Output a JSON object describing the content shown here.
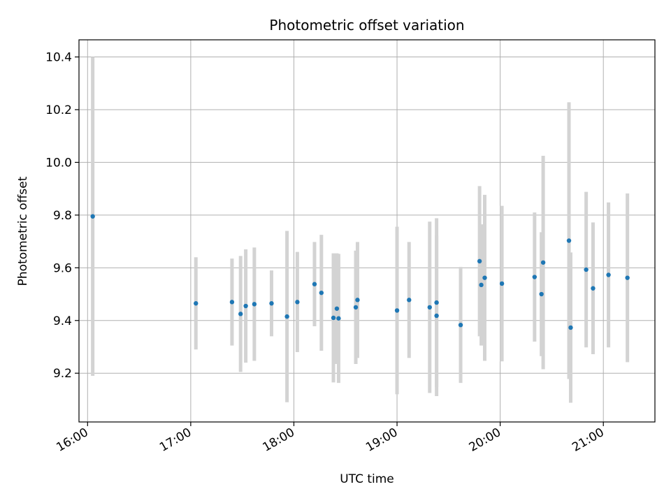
{
  "chart_data": {
    "type": "scatter",
    "title": "Photometric offset variation",
    "xlabel": "UTC time",
    "ylabel": "Photometric offset",
    "x_ticks": [
      "16:00",
      "17:00",
      "18:00",
      "19:00",
      "20:00",
      "21:00"
    ],
    "x_range": [
      "15:55",
      "21:30"
    ],
    "ylim": [
      9.015,
      10.465
    ],
    "y_ticks": [
      9.2,
      9.4,
      9.6,
      9.8,
      10.0,
      10.2,
      10.4
    ],
    "y_tick_labels": [
      "9.2",
      "9.4",
      "9.6",
      "9.8",
      "10.0",
      "10.2",
      "10.4"
    ],
    "grid": true,
    "x_tick_rotation_deg": 30,
    "point_color": "#1f77b4",
    "errorbar_color": "#d3d3d3",
    "points": [
      {
        "t": "16:03",
        "y": 9.795,
        "err": 0.605
      },
      {
        "t": "17:03",
        "y": 9.465,
        "err": 0.175
      },
      {
        "t": "17:24",
        "y": 9.47,
        "err": 0.165
      },
      {
        "t": "17:29",
        "y": 9.425,
        "err": 0.22
      },
      {
        "t": "17:32",
        "y": 9.455,
        "err": 0.215
      },
      {
        "t": "17:37",
        "y": 9.462,
        "err": 0.215
      },
      {
        "t": "17:47",
        "y": 9.465,
        "err": 0.125
      },
      {
        "t": "17:56",
        "y": 9.415,
        "err": 0.325
      },
      {
        "t": "18:02",
        "y": 9.47,
        "err": 0.19
      },
      {
        "t": "18:12",
        "y": 9.538,
        "err": 0.16
      },
      {
        "t": "18:16",
        "y": 9.505,
        "err": 0.22
      },
      {
        "t": "18:23",
        "y": 9.41,
        "err": 0.245
      },
      {
        "t": "18:25",
        "y": 9.445,
        "err": 0.21
      },
      {
        "t": "18:26",
        "y": 9.408,
        "err": 0.245
      },
      {
        "t": "18:36",
        "y": 9.45,
        "err": 0.215
      },
      {
        "t": "18:37",
        "y": 9.478,
        "err": 0.22
      },
      {
        "t": "19:00",
        "y": 9.438,
        "err": 0.318
      },
      {
        "t": "19:07",
        "y": 9.478,
        "err": 0.22
      },
      {
        "t": "19:19",
        "y": 9.45,
        "err": 0.325
      },
      {
        "t": "19:23",
        "y": 9.468,
        "err": 0.32
      },
      {
        "t": "19:23",
        "y": 9.418,
        "err": 0.305
      },
      {
        "t": "19:37",
        "y": 9.383,
        "err": 0.22
      },
      {
        "t": "19:48",
        "y": 9.625,
        "err": 0.285
      },
      {
        "t": "19:49",
        "y": 9.535,
        "err": 0.23
      },
      {
        "t": "19:51",
        "y": 9.562,
        "err": 0.315
      },
      {
        "t": "20:01",
        "y": 9.54,
        "err": 0.295
      },
      {
        "t": "20:20",
        "y": 9.565,
        "err": 0.245
      },
      {
        "t": "20:24",
        "y": 9.5,
        "err": 0.235
      },
      {
        "t": "20:25",
        "y": 9.62,
        "err": 0.405
      },
      {
        "t": "20:40",
        "y": 9.703,
        "err": 0.525
      },
      {
        "t": "20:41",
        "y": 9.373,
        "err": 0.285
      },
      {
        "t": "20:50",
        "y": 9.593,
        "err": 0.295
      },
      {
        "t": "20:54",
        "y": 9.522,
        "err": 0.25
      },
      {
        "t": "21:03",
        "y": 9.573,
        "err": 0.275
      },
      {
        "t": "21:14",
        "y": 9.562,
        "err": 0.32
      }
    ]
  }
}
